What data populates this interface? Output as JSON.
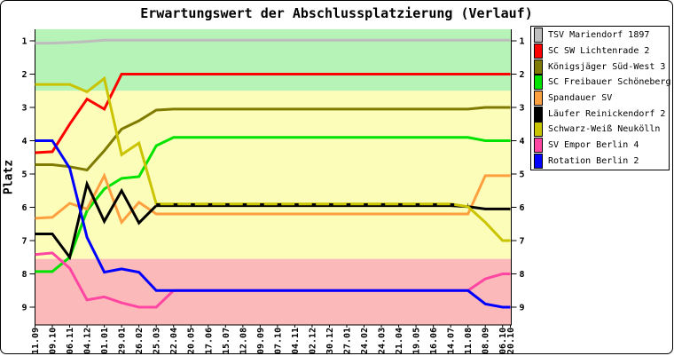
{
  "title": "Erwartungswert der Abschlussplatzierung (Verlauf)",
  "chart_data": {
    "type": "line",
    "title": "Erwartungswert der Abschlussplatzierung (Verlauf)",
    "ylabel": "Platz",
    "xlabel": "",
    "y_axis_inverted": true,
    "y_ticks": [
      1,
      2,
      3,
      4,
      5,
      6,
      7,
      8,
      9
    ],
    "y_ticks_on_both_sides": true,
    "ylim": [
      0.65,
      9.53
    ],
    "grid": false,
    "legend_position": "top-right",
    "background_bands": [
      {
        "name": "top-zone",
        "from": 0.65,
        "to": 2.5,
        "color": "#b6f3b6"
      },
      {
        "name": "middle-zone",
        "from": 2.5,
        "to": 7.55,
        "color": "#fdfdba"
      },
      {
        "name": "bottom-zone",
        "from": 7.55,
        "to": 9.53,
        "color": "#fbb9b9"
      }
    ],
    "x_labels": [
      "11.09",
      "09.10",
      "06.11",
      "04.12",
      "01.01",
      "29.01",
      "26.02",
      "25.03",
      "22.04",
      "20.05",
      "17.06",
      "15.07",
      "12.08",
      "09.09",
      "07.10",
      "04.11",
      "02.12",
      "30.12",
      "27.01",
      "24.02",
      "24.03",
      "21.04",
      "19.05",
      "16.06",
      "14.07",
      "11.08",
      "08.09",
      "06.10",
      "20.10"
    ],
    "series": [
      {
        "name": "TSV Mariendorf 1897",
        "color": "#bdbdbd",
        "values": [
          1.07,
          1.07,
          1.05,
          1.02,
          0.98,
          0.98,
          0.98,
          0.98,
          0.98,
          0.98,
          0.98,
          0.98,
          0.98,
          0.98,
          0.98,
          0.98,
          0.98,
          0.98,
          0.98,
          0.98,
          0.98,
          0.98,
          0.98,
          0.98,
          0.98,
          0.98,
          0.98,
          0.98,
          0.98
        ]
      },
      {
        "name": "SC SW Lichtenrade 2",
        "color": "#ff0000",
        "values": [
          4.36,
          4.33,
          3.5,
          2.75,
          3.05,
          2.0,
          2.0,
          2.0,
          2.0,
          2.0,
          2.0,
          2.0,
          2.0,
          2.0,
          2.0,
          2.0,
          2.0,
          2.0,
          2.0,
          2.0,
          2.0,
          2.0,
          2.0,
          2.0,
          2.0,
          2.0,
          2.0,
          2.0,
          2.0
        ]
      },
      {
        "name": "Königsjäger Süd-West 3",
        "color": "#7f7b00",
        "values": [
          4.72,
          4.72,
          4.78,
          4.88,
          4.3,
          3.65,
          3.4,
          3.08,
          3.05,
          3.05,
          3.05,
          3.05,
          3.05,
          3.05,
          3.05,
          3.05,
          3.05,
          3.05,
          3.05,
          3.05,
          3.05,
          3.05,
          3.05,
          3.05,
          3.05,
          3.05,
          3.0,
          3.0,
          3.0
        ]
      },
      {
        "name": "SC Freibauer Schöneberg",
        "color": "#00e300",
        "values": [
          7.93,
          7.93,
          7.5,
          6.1,
          5.45,
          5.13,
          5.08,
          4.15,
          3.9,
          3.9,
          3.9,
          3.9,
          3.9,
          3.9,
          3.9,
          3.9,
          3.9,
          3.9,
          3.9,
          3.9,
          3.9,
          3.9,
          3.9,
          3.9,
          3.9,
          3.9,
          4.0,
          4.0,
          4.0
        ]
      },
      {
        "name": "Spandauer SV",
        "color": "#ffa040",
        "values": [
          6.33,
          6.3,
          5.88,
          6.05,
          5.05,
          6.45,
          5.85,
          6.2,
          6.2,
          6.2,
          6.2,
          6.2,
          6.2,
          6.2,
          6.2,
          6.2,
          6.2,
          6.2,
          6.2,
          6.2,
          6.2,
          6.2,
          6.2,
          6.2,
          6.2,
          6.2,
          5.05,
          5.05,
          5.05
        ]
      },
      {
        "name": "Läufer Reinickendorf 2",
        "color": "#000000",
        "values": [
          6.8,
          6.8,
          7.5,
          5.3,
          6.42,
          5.5,
          6.47,
          5.95,
          5.95,
          5.95,
          5.95,
          5.95,
          5.95,
          5.95,
          5.95,
          5.95,
          5.95,
          5.95,
          5.95,
          5.95,
          5.95,
          5.95,
          5.95,
          5.95,
          5.95,
          5.98,
          6.05,
          6.05,
          6.05
        ]
      },
      {
        "name": "Schwarz-Weiß Neukölln",
        "color": "#c9c300",
        "values": [
          2.31,
          2.31,
          2.31,
          2.53,
          2.13,
          4.42,
          4.07,
          5.9,
          5.9,
          5.9,
          5.9,
          5.9,
          5.9,
          5.9,
          5.9,
          5.9,
          5.9,
          5.9,
          5.9,
          5.9,
          5.9,
          5.9,
          5.9,
          5.9,
          5.9,
          5.98,
          6.45,
          7.0,
          7.0
        ]
      },
      {
        "name": "black-dash-overlap",
        "color": "#000000",
        "show_in_legend": false,
        "dash": "4.5,15",
        "x_index": [
          7,
          25
        ],
        "values": [
          5.92,
          5.92
        ]
      },
      {
        "name": "SV Empor Berlin 4",
        "color": "#ff46a2",
        "values": [
          7.42,
          7.37,
          7.83,
          8.78,
          8.69,
          8.87,
          9.0,
          9.0,
          8.5,
          8.5,
          8.5,
          8.5,
          8.5,
          8.5,
          8.5,
          8.5,
          8.5,
          8.5,
          8.5,
          8.5,
          8.5,
          8.5,
          8.5,
          8.5,
          8.5,
          8.5,
          8.15,
          8.0,
          8.0
        ]
      },
      {
        "name": "Rotation Berlin 2",
        "color": "#0000ff",
        "values": [
          4.0,
          4.0,
          4.82,
          6.9,
          7.95,
          7.85,
          7.95,
          8.5,
          8.5,
          8.5,
          8.5,
          8.5,
          8.5,
          8.5,
          8.5,
          8.5,
          8.5,
          8.5,
          8.5,
          8.5,
          8.5,
          8.5,
          8.5,
          8.5,
          8.5,
          8.5,
          8.9,
          9.0,
          9.0
        ]
      }
    ]
  }
}
